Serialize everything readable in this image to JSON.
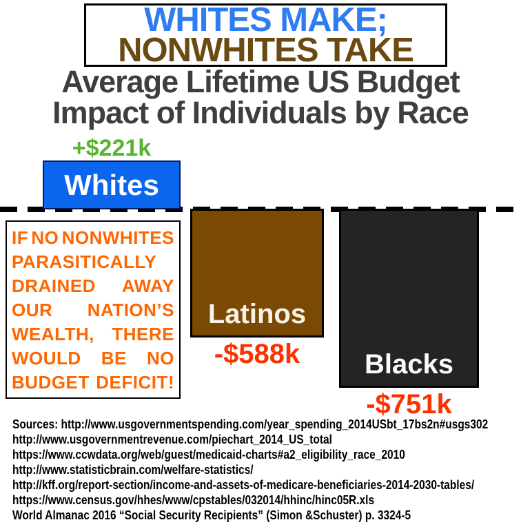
{
  "title_box": {
    "line1": "WHITES MAKE;",
    "line2": "NONWHITES TAKE"
  },
  "subtitle": {
    "line1": "Average Lifetime US Budget",
    "line2": "Impact of Individuals by Race"
  },
  "chart_data": {
    "type": "bar",
    "title": "Average Lifetime US Budget Impact of Individuals by Race",
    "categories": [
      "Whites",
      "Latinos",
      "Blacks"
    ],
    "values": [
      221,
      -588,
      -751
    ],
    "unit": "thousands of US dollars (lifetime budget impact)",
    "value_labels": [
      "+$221k",
      "-$588k",
      "-$751k"
    ],
    "baseline": 0,
    "baseline_style": "thick black dashed line at zero",
    "bar_colors": [
      "#0b66ef",
      "#7a4903",
      "#242424"
    ],
    "value_label_colors": [
      "#56b42f",
      "#fb3200",
      "#fb3200"
    ],
    "legend": "none",
    "grid": false
  },
  "bars": {
    "whites_label": "Whites",
    "latinos_label": "Latinos",
    "blacks_label": "Blacks",
    "whites_value": "+$221k",
    "latinos_value": "-$588k",
    "blacks_value": "-$751k"
  },
  "annotation": {
    "lines": [
      "IF NO NONWHITES",
      "PARASITICALLY",
      "DRAINED AWAY",
      "OUR NATION’S",
      "WEALTH, THERE",
      "WOULD BE NO",
      "BUDGET DEFICIT!"
    ]
  },
  "sources": {
    "lines": [
      "Sources: http://www.usgovernmentspending.com/year_spending_2014USbt_17bs2n#usgs302",
      "http://www.usgovernmentrevenue.com/piechart_2014_US_total",
      "https://www.ccwdata.org/web/guest/medicaid-charts#a2_eligibility_race_2010",
      "http://www.statisticbrain.com/welfare-statistics/",
      "http://kff.org/report-section/income-and-assets-of-medicare-beneficiaries-2014-2030-tables/",
      "https://www.census.gov/hhes/www/cpstables/032014/hhinc/hinc05R.xls",
      "World Almanac 2016 “Social Security Recipients” (Simon &Schuster) p. 3324-5"
    ]
  },
  "colors": {
    "title_blue": "#2e7cf2",
    "title_brown": "#6b4a12",
    "subtitle_gray": "#3e3e3e",
    "positive_green": "#56b42f",
    "negative_red": "#fb3200",
    "annotation_orange": "#ff6600",
    "bar_whites": "#0b66ef",
    "bar_latinos": "#7a4903",
    "bar_blacks": "#242424"
  }
}
